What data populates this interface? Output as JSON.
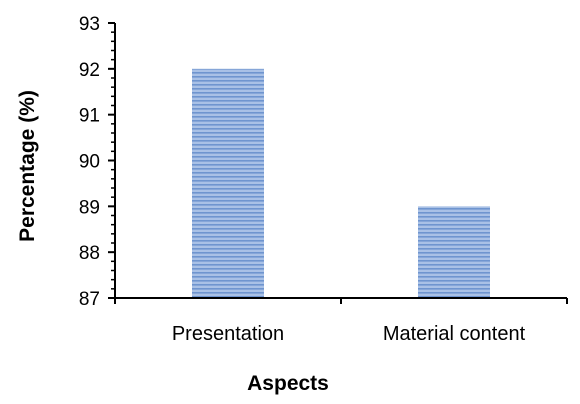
{
  "chart_data": {
    "type": "bar",
    "categories": [
      "Presentation",
      "Material content"
    ],
    "values": [
      92,
      89
    ],
    "title": "",
    "xlabel": "Aspects",
    "ylabel": "Percentage (%)",
    "ylim": [
      87,
      93
    ],
    "y_ticks": [
      "87",
      "88",
      "89",
      "90",
      "91",
      "92",
      "93"
    ],
    "grid": false,
    "legend": "none",
    "colors": {
      "bar_fill": "#a9c1e6",
      "bar_stripe": "#6f95cf",
      "axis": "#000000"
    }
  }
}
